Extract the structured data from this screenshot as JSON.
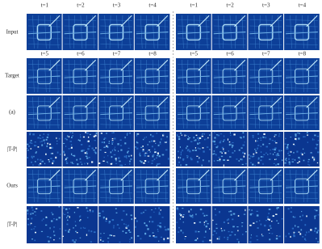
{
  "header_top": {
    "left": [
      "t=1",
      "t=2",
      "t=3",
      "t=4"
    ],
    "right": [
      "t=1",
      "t=2",
      "t=3",
      "t=4"
    ]
  },
  "header_mid": {
    "left": [
      "t=5",
      "t=6",
      "t=7",
      "t=8"
    ],
    "right": [
      "t=5",
      "t=6",
      "t=7",
      "t=8"
    ]
  },
  "rows": [
    "Input",
    "Target",
    "(a)",
    "|T-P|",
    "Ours",
    "|T-P|"
  ]
}
